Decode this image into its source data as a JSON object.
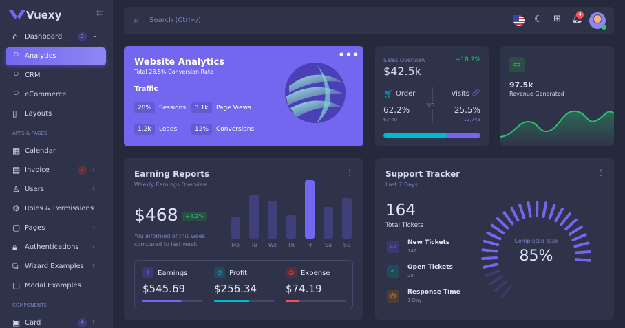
{
  "sidebar": {
    "brand": "Vuexy",
    "items": [
      {
        "label": "Dashboard",
        "badge": 3
      },
      {
        "label": "Analytics"
      },
      {
        "label": "CRM"
      },
      {
        "label": "eCommerce"
      },
      {
        "label": "Layouts"
      },
      {
        "section": "APPS & PAGES"
      },
      {
        "label": "Calendar"
      },
      {
        "label": "Invoice",
        "badge": 2
      },
      {
        "label": "Users"
      },
      {
        "label": "Roles & Permissions"
      },
      {
        "label": "Pages"
      },
      {
        "label": "Authentications"
      },
      {
        "label": "Wizard Examples"
      },
      {
        "label": "Modal Examples"
      },
      {
        "section": "COMPONENTS"
      },
      {
        "label": "Card",
        "badge": 4
      }
    ]
  },
  "topbar": {
    "search": "Search (Ctrl+/)",
    "notifications": 4
  },
  "website_analytics": {
    "title": "Website Analytics",
    "subtitle": "Total 28.5% Conversion Rate",
    "heading": "Traffic",
    "stats": [
      {
        "value": "28%",
        "label": "Sessions"
      },
      {
        "value": "3.1k",
        "label": "Page Views"
      },
      {
        "value": "1.2k",
        "label": "Leads"
      },
      {
        "value": "12%",
        "label": "Conversions"
      }
    ]
  },
  "sales_overview": {
    "label": "Sales Overview",
    "value": "$42.5k",
    "change": "+18.2%",
    "order": {
      "label": "Order",
      "percent": "62.2%",
      "count": "6,440"
    },
    "vs": "VS",
    "visits": {
      "label": "Visits",
      "percent": "25.5%",
      "count": "12,749"
    }
  },
  "revenue": {
    "value": "97.5k",
    "label": "Revenue Generated"
  },
  "earning_reports": {
    "title": "Earning Reports",
    "subtitle": "Weekly Earnings Overview",
    "amount": "$468",
    "change": "+4.2%",
    "note": "You informed of this week compared to last week",
    "chart": {
      "type": "bar",
      "categories": [
        "Mo",
        "Tu",
        "We",
        "Th",
        "Fr",
        "Sa",
        "Su"
      ],
      "values": [
        31,
        64,
        55,
        34,
        85,
        46,
        59
      ]
    },
    "summary": [
      {
        "label": "Earnings",
        "value": "$545.69"
      },
      {
        "label": "Profit",
        "value": "$256.34"
      },
      {
        "label": "Expense",
        "value": "$74.19"
      }
    ]
  },
  "support_tracker": {
    "title": "Support Tracker",
    "subtitle": "Last 7 Days",
    "total": 164,
    "total_label": "Total Tickets",
    "items": [
      {
        "label": "New Tickets",
        "value": 142
      },
      {
        "label": "Open Tickets",
        "value": 28
      },
      {
        "label": "Response Time",
        "value": "1 Day"
      }
    ],
    "gauge_label": "Completed Task",
    "gauge_value": "85%"
  }
}
